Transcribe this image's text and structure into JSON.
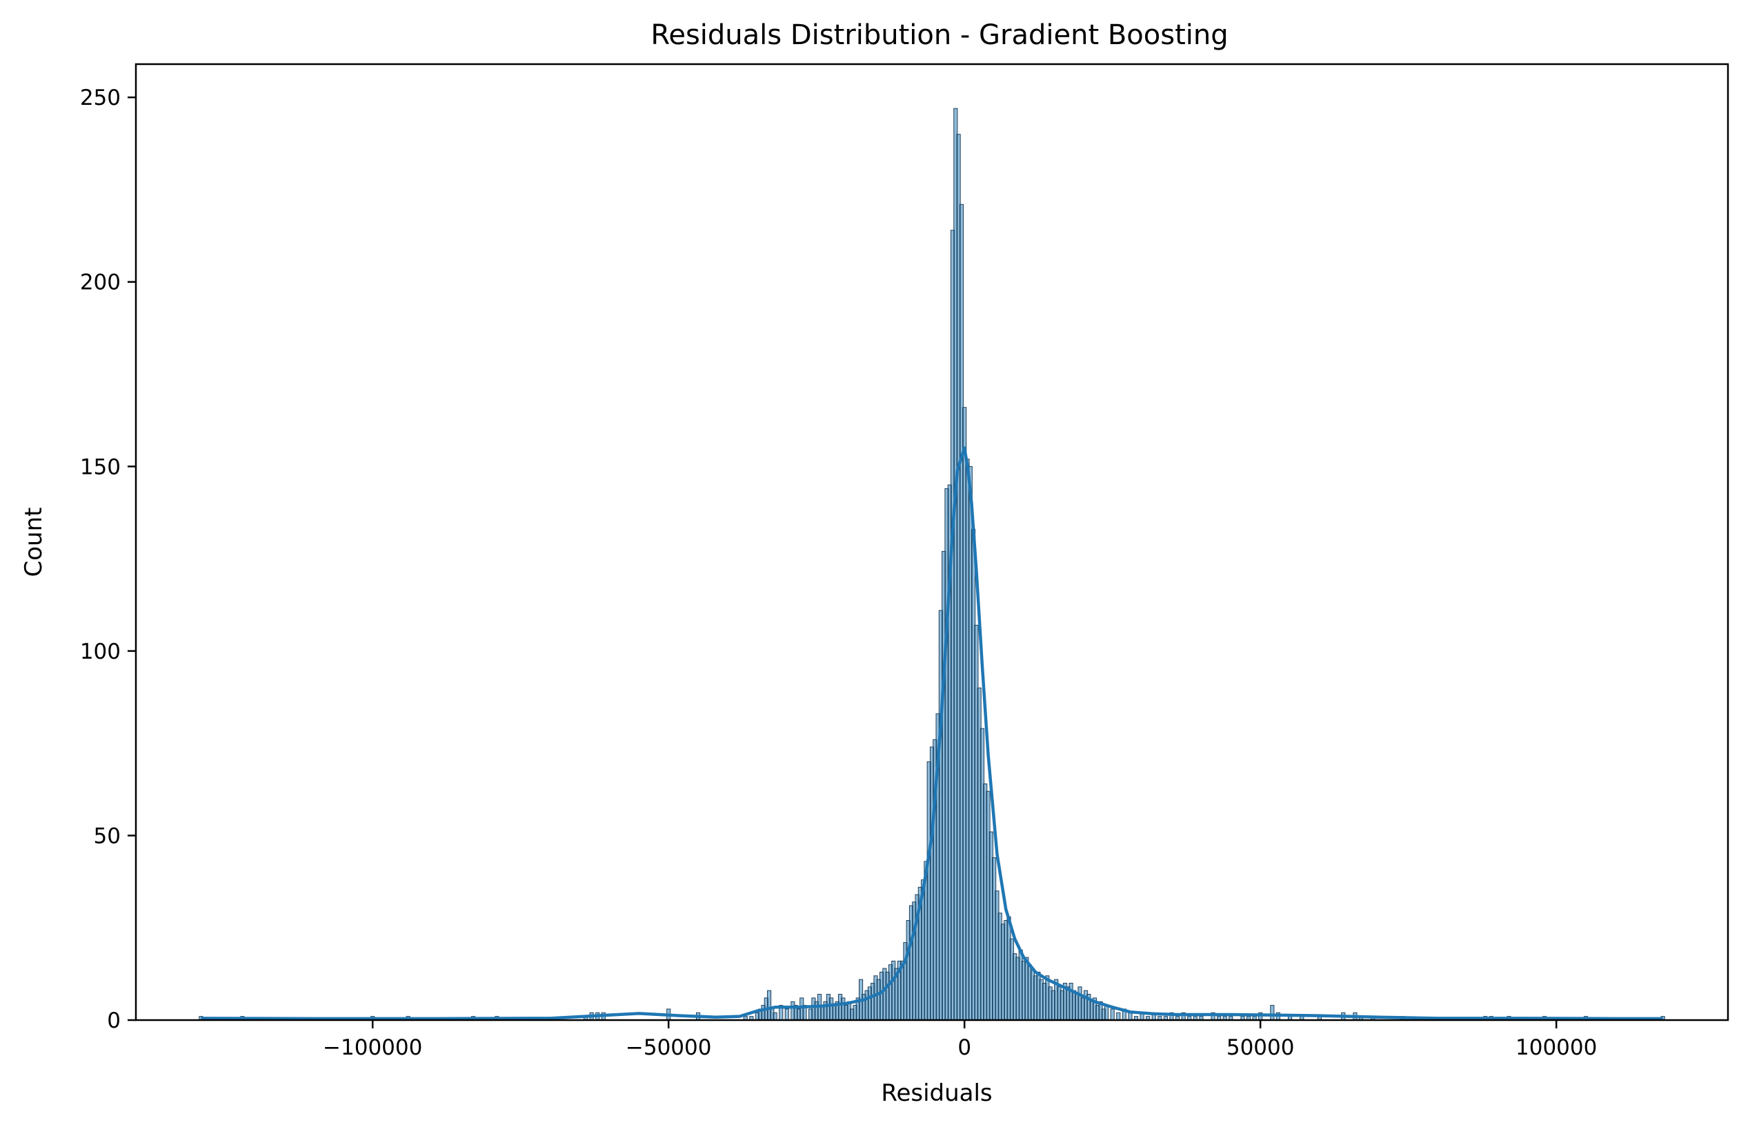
{
  "chart_data": {
    "type": "histogram",
    "title": "Residuals Distribution - Gradient Boosting",
    "xlabel": "Residuals",
    "ylabel": "Count",
    "xlim": [
      -140000,
      129000
    ],
    "ylim": [
      0,
      259
    ],
    "xticks": [
      {
        "value": -100000,
        "label": "−100000"
      },
      {
        "value": -50000,
        "label": "−50000"
      },
      {
        "value": 0,
        "label": "0"
      },
      {
        "value": 50000,
        "label": "50000"
      },
      {
        "value": 100000,
        "label": "100000"
      }
    ],
    "yticks": [
      {
        "value": 0,
        "label": "0"
      },
      {
        "value": 50,
        "label": "50"
      },
      {
        "value": 100,
        "label": "100"
      },
      {
        "value": 150,
        "label": "150"
      },
      {
        "value": 200,
        "label": "200"
      },
      {
        "value": 250,
        "label": "250"
      }
    ],
    "bin_width": 600,
    "bins": [
      [
        -129000,
        1
      ],
      [
        -122000,
        1
      ],
      [
        -100000,
        1
      ],
      [
        -94000,
        1
      ],
      [
        -83000,
        1
      ],
      [
        -79000,
        1
      ],
      [
        -64000,
        1
      ],
      [
        -63000,
        2
      ],
      [
        -62000,
        2
      ],
      [
        -61000,
        2
      ],
      [
        -50000,
        3
      ],
      [
        -45000,
        2
      ],
      [
        -37000,
        1
      ],
      [
        -36000,
        1
      ],
      [
        -35000,
        2
      ],
      [
        -34500,
        3
      ],
      [
        -34000,
        4
      ],
      [
        -33500,
        6
      ],
      [
        -33000,
        8
      ],
      [
        -32500,
        3
      ],
      [
        -32000,
        2
      ],
      [
        -31000,
        4
      ],
      [
        -30000,
        3
      ],
      [
        -29000,
        5
      ],
      [
        -28500,
        4
      ],
      [
        -28000,
        3
      ],
      [
        -27500,
        6
      ],
      [
        -27000,
        4
      ],
      [
        -26000,
        3
      ],
      [
        -25500,
        6
      ],
      [
        -25000,
        5
      ],
      [
        -24500,
        7
      ],
      [
        -24000,
        4
      ],
      [
        -23500,
        5
      ],
      [
        -23000,
        7
      ],
      [
        -22500,
        6
      ],
      [
        -22000,
        4
      ],
      [
        -21500,
        5
      ],
      [
        -21000,
        7
      ],
      [
        -20500,
        6
      ],
      [
        -20000,
        4
      ],
      [
        -19500,
        5
      ],
      [
        -19000,
        3
      ],
      [
        -18500,
        4
      ],
      [
        -18000,
        6
      ],
      [
        -17500,
        11
      ],
      [
        -17000,
        7
      ],
      [
        -16500,
        8
      ],
      [
        -16000,
        9
      ],
      [
        -15500,
        10
      ],
      [
        -15000,
        12
      ],
      [
        -14500,
        11
      ],
      [
        -14000,
        13
      ],
      [
        -13500,
        14
      ],
      [
        -13000,
        13
      ],
      [
        -12500,
        15
      ],
      [
        -12000,
        16
      ],
      [
        -11500,
        14
      ],
      [
        -11000,
        16
      ],
      [
        -10500,
        16
      ],
      [
        -10000,
        21
      ],
      [
        -9500,
        27
      ],
      [
        -9000,
        31
      ],
      [
        -8500,
        32
      ],
      [
        -8000,
        34
      ],
      [
        -7500,
        36
      ],
      [
        -7000,
        38
      ],
      [
        -6500,
        43
      ],
      [
        -6000,
        70
      ],
      [
        -5500,
        74
      ],
      [
        -5000,
        76
      ],
      [
        -4500,
        83
      ],
      [
        -4000,
        111
      ],
      [
        -3500,
        127
      ],
      [
        -3000,
        144
      ],
      [
        -2500,
        145
      ],
      [
        -2000,
        214
      ],
      [
        -1500,
        247
      ],
      [
        -1000,
        240
      ],
      [
        -500,
        221
      ],
      [
        0,
        166
      ],
      [
        500,
        152
      ],
      [
        1000,
        150
      ],
      [
        1500,
        133
      ],
      [
        2000,
        107
      ],
      [
        2500,
        90
      ],
      [
        3000,
        79
      ],
      [
        3500,
        64
      ],
      [
        4000,
        62
      ],
      [
        4500,
        51
      ],
      [
        5000,
        44
      ],
      [
        5500,
        35
      ],
      [
        6000,
        29
      ],
      [
        6500,
        26
      ],
      [
        7000,
        27
      ],
      [
        7500,
        28
      ],
      [
        8000,
        22
      ],
      [
        8500,
        18
      ],
      [
        9000,
        17
      ],
      [
        9500,
        19
      ],
      [
        10000,
        16
      ],
      [
        10500,
        17
      ],
      [
        11000,
        15
      ],
      [
        11500,
        14
      ],
      [
        12000,
        12
      ],
      [
        12500,
        13
      ],
      [
        13000,
        11
      ],
      [
        13500,
        10
      ],
      [
        14000,
        12
      ],
      [
        14500,
        9
      ],
      [
        15000,
        8
      ],
      [
        15500,
        11
      ],
      [
        16000,
        9
      ],
      [
        16500,
        8
      ],
      [
        17000,
        10
      ],
      [
        17500,
        9
      ],
      [
        18000,
        10
      ],
      [
        18500,
        8
      ],
      [
        19000,
        7
      ],
      [
        19500,
        9
      ],
      [
        20000,
        6
      ],
      [
        20500,
        8
      ],
      [
        21000,
        7
      ],
      [
        21500,
        5
      ],
      [
        22000,
        6
      ],
      [
        22500,
        4
      ],
      [
        23000,
        5
      ],
      [
        23500,
        3
      ],
      [
        24000,
        4
      ],
      [
        25000,
        3
      ],
      [
        26000,
        2
      ],
      [
        27000,
        3
      ],
      [
        28000,
        2
      ],
      [
        29000,
        1
      ],
      [
        30000,
        2
      ],
      [
        31000,
        1
      ],
      [
        32000,
        2
      ],
      [
        33000,
        1
      ],
      [
        34000,
        1
      ],
      [
        35000,
        2
      ],
      [
        36000,
        1
      ],
      [
        37000,
        2
      ],
      [
        38000,
        1
      ],
      [
        39000,
        1
      ],
      [
        40000,
        1
      ],
      [
        42000,
        2
      ],
      [
        43000,
        1
      ],
      [
        44000,
        1
      ],
      [
        45000,
        1
      ],
      [
        47000,
        1
      ],
      [
        48000,
        1
      ],
      [
        49000,
        1
      ],
      [
        50000,
        2
      ],
      [
        52000,
        4
      ],
      [
        53000,
        2
      ],
      [
        55000,
        1
      ],
      [
        57000,
        1
      ],
      [
        60000,
        1
      ],
      [
        64000,
        2
      ],
      [
        66000,
        2
      ],
      [
        67000,
        1
      ],
      [
        69000,
        1
      ],
      [
        74000,
        1
      ],
      [
        88000,
        1
      ],
      [
        89000,
        1
      ],
      [
        92000,
        1
      ],
      [
        98000,
        1
      ],
      [
        105000,
        1
      ],
      [
        118000,
        1
      ]
    ],
    "kde": {
      "x": [
        -129000,
        -110000,
        -90000,
        -70000,
        -62000,
        -55000,
        -48000,
        -42000,
        -38000,
        -35000,
        -32000,
        -28000,
        -24000,
        -20000,
        -17000,
        -14000,
        -12000,
        -10000,
        -8500,
        -7000,
        -5500,
        -4000,
        -3000,
        -2000,
        -1200,
        -600,
        0,
        600,
        1200,
        2000,
        3000,
        4000,
        5500,
        7000,
        8500,
        10000,
        12000,
        14000,
        16000,
        18000,
        20000,
        22000,
        25000,
        28000,
        32000,
        36000,
        40000,
        45000,
        50000,
        55000,
        60000,
        65000,
        70000,
        80000,
        95000,
        110000,
        118000
      ],
      "y": [
        0.5,
        0.4,
        0.4,
        0.5,
        1.2,
        1.8,
        1.2,
        0.8,
        1,
        2.5,
        3.5,
        3.5,
        3.8,
        4.5,
        5.5,
        7.5,
        11,
        16,
        24,
        35,
        50,
        80,
        106,
        133,
        149,
        152,
        155,
        149,
        140,
        122,
        96,
        72,
        45,
        30,
        22,
        17,
        13,
        11,
        9.5,
        8,
        6.5,
        5,
        3.5,
        2.2,
        1.7,
        1.5,
        1.5,
        1.5,
        1.4,
        1.3,
        1.2,
        1,
        0.8,
        0.5,
        0.5,
        0.4,
        0.4
      ]
    },
    "colors": {
      "bar_fill": "#1f77b4",
      "kde_line": "#1f77b4",
      "axes": "#000000"
    }
  }
}
